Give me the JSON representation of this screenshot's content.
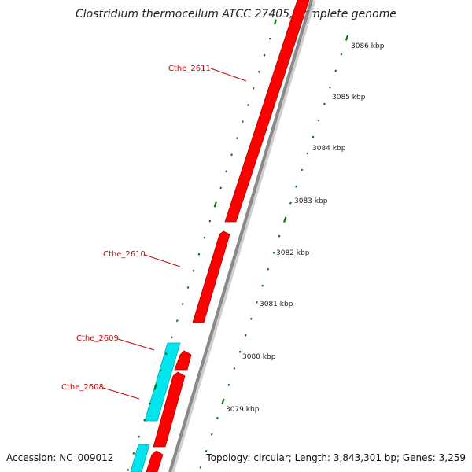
{
  "title": "Clostridium thermocellum ATCC 27405, complete genome",
  "accession": "Accession: NC_009012",
  "topology": "Topology: circular; Length: 3,843,301 bp; Genes: 3,259",
  "colors": {
    "forward_gene": "#ff0000",
    "reverse_gene": "#00e5ee",
    "gene_label": "#cc0000",
    "backbone": "#888888",
    "tick": "#007700",
    "scale_text": "#222222"
  },
  "genes": [
    {
      "name": "Cthe_2611",
      "strand": "forward"
    },
    {
      "name": "Cthe_2610",
      "strand": "forward"
    },
    {
      "name": "Cthe_2609",
      "strand": "forward"
    },
    {
      "name": "Cthe_2608",
      "strand": "reverse"
    }
  ],
  "scale_labels": [
    "3086 kbp",
    "3085 kbp",
    "3084 kbp",
    "3083 kbp",
    "3082 kbp",
    "3081 kbp",
    "3080 kbp",
    "3079 kbp"
  ]
}
